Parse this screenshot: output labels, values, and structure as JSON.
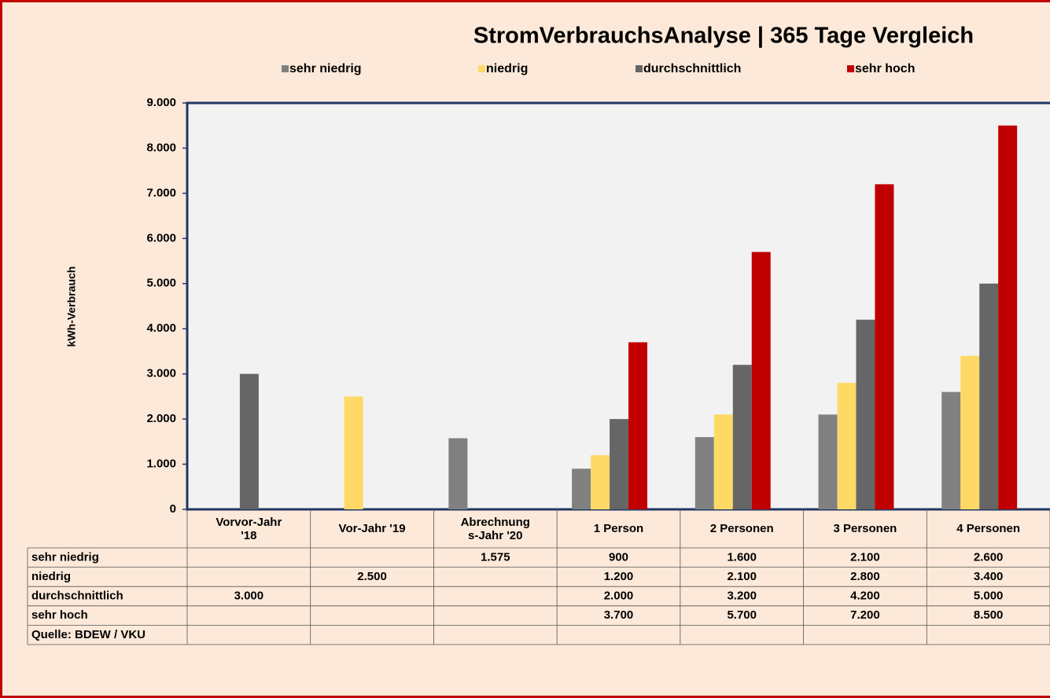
{
  "chart_data": {
    "type": "bar",
    "title": "StromVerbrauchsAnalyse | 365 Tage Vergleich",
    "y_label": "kWh-Verbrauch",
    "source": "Quelle: BDEW / VKU",
    "categories": [
      "Vorvor-Jahr '18",
      "Vor-Jahr '19",
      "Abrechnungs-Jahr '20",
      "1 Person",
      "2 Personen",
      "3 Personen",
      "4 Personen"
    ],
    "series": [
      {
        "name": "sehr niedrig",
        "color": "#808080",
        "values": [
          null,
          null,
          1575,
          900,
          1600,
          2100,
          2600
        ],
        "value_labels": [
          null,
          null,
          "1.575",
          "900",
          "1.600",
          "2.100",
          "2.600"
        ]
      },
      {
        "name": "niedrig",
        "color": "#ffd966",
        "values": [
          null,
          2500,
          null,
          1200,
          2100,
          2800,
          3400
        ],
        "value_labels": [
          null,
          "2.500",
          null,
          "1.200",
          "2.100",
          "2.800",
          "3.400"
        ]
      },
      {
        "name": "durchschnittlich",
        "color": "#666666",
        "values": [
          3000,
          null,
          null,
          2000,
          3200,
          4200,
          5000
        ],
        "value_labels": [
          "3.000",
          null,
          null,
          "2.000",
          "3.200",
          "4.200",
          "5.000"
        ]
      },
      {
        "name": "sehr hoch",
        "color": "#c00000",
        "values": [
          null,
          null,
          null,
          3700,
          5700,
          7200,
          8500
        ],
        "value_labels": [
          null,
          null,
          null,
          "3.700",
          "5.700",
          "7.200",
          "8.500"
        ]
      }
    ],
    "ylim": [
      0,
      9000
    ],
    "yticks": [
      0,
      {
        "value": 1000,
        "label": "1.000"
      },
      {
        "value": 2000,
        "label": "2.000"
      },
      {
        "value": 3000,
        "label": "3.000"
      },
      {
        "value": 4000,
        "label": "4.000"
      },
      {
        "value": 5000,
        "label": "5.000"
      },
      {
        "value": 6000,
        "label": "6.000"
      },
      {
        "value": 7000,
        "label": "7.000"
      },
      {
        "value": 8000,
        "label": "8.000"
      },
      {
        "value": 9000,
        "label": "9.000"
      }
    ],
    "legend": "top"
  }
}
